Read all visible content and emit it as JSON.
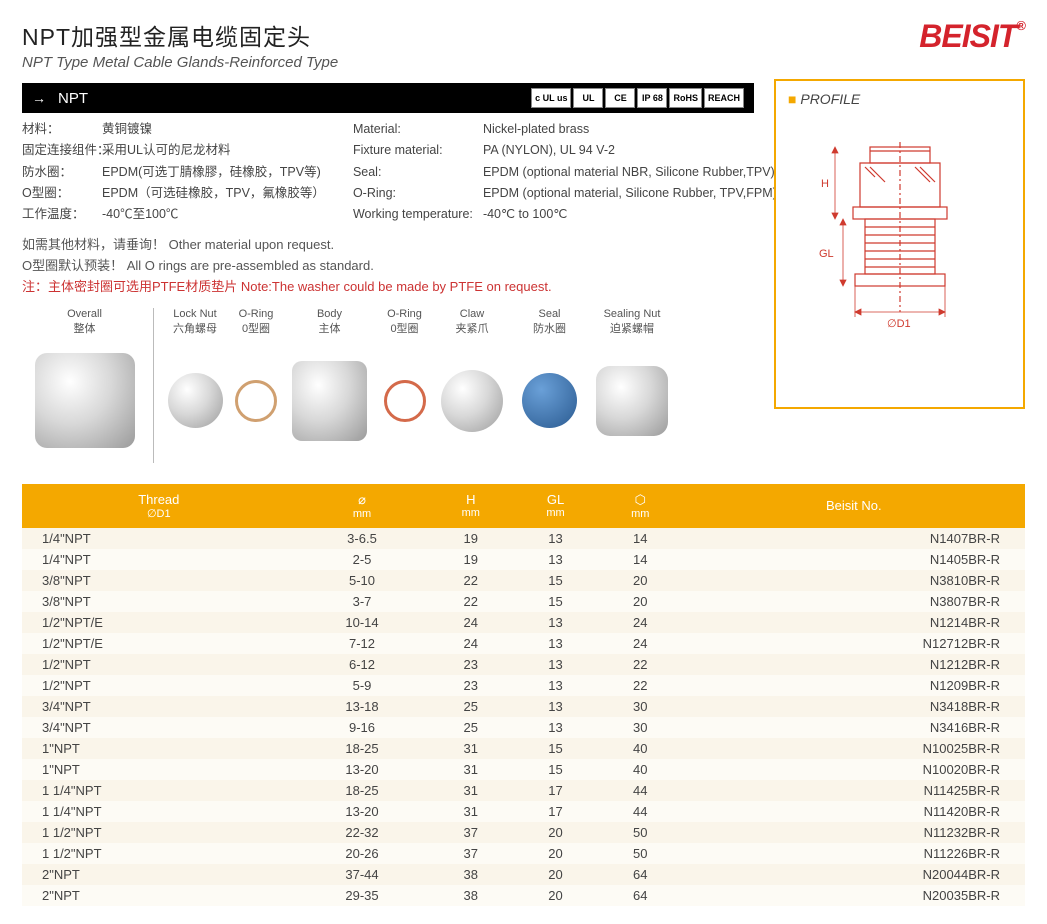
{
  "header": {
    "title_cn": "NPT加强型金属电缆固定头",
    "title_en": "NPT Type Metal Cable Glands-Reinforced Type",
    "logo": "BEISIT",
    "logo_reg": "®",
    "logo_color": "#d4232c"
  },
  "black_bar": {
    "code": "NPT",
    "certs": [
      "c UL us",
      "UL",
      "CE",
      "IP 68",
      "RoHS",
      "REACH"
    ]
  },
  "specs_cn": [
    {
      "label": "材料：",
      "value": "黄铜镀镍"
    },
    {
      "label": "固定连接组件：",
      "value": "采用UL认可的尼龙材料"
    },
    {
      "label": "防水圈：",
      "value": "EPDM(可选丁腈橡膠，硅橡胶，TPV等)"
    },
    {
      "label": "O型圈：",
      "value": "EPDM（可选硅橡胶，TPV，氟橡胶等）"
    },
    {
      "label": "工作温度：",
      "value": "-40℃至100℃"
    }
  ],
  "specs_en": [
    {
      "label": "Material:",
      "value": "Nickel-plated brass"
    },
    {
      "label": "Fixture material:",
      "value": "PA (NYLON), UL 94 V-2"
    },
    {
      "label": "Seal:",
      "value": "EPDM (optional material NBR, Silicone Rubber,TPV)"
    },
    {
      "label": "O-Ring:",
      "value": "EPDM (optional material, Silicone Rubber, TPV,FPM)"
    },
    {
      "label": "Working temperature:",
      "value": "-40℃ to 100℃"
    }
  ],
  "notes": [
    "如需其他材料，请垂询！ Other material upon request.",
    "O型圈默认预装！ All O rings are pre-assembled as standard.",
    "注：主体密封圈可选用PTFE材质垫片 Note:The washer could be made by PTFE on request."
  ],
  "profile": {
    "title": "PROFILE",
    "labels": {
      "H": "H",
      "GL": "GL",
      "D1": "∅D1"
    },
    "line_color": "#cf3a2e"
  },
  "parts": [
    {
      "en": "Overall",
      "cn": "整体",
      "w": 125
    },
    {
      "en": "Lock Nut",
      "cn": "六角螺母",
      "w": 70
    },
    {
      "en": "O-Ring",
      "cn": "0型圈",
      "w": 52
    },
    {
      "en": "Body",
      "cn": "主体",
      "w": 95
    },
    {
      "en": "O-Ring",
      "cn": "0型圈",
      "w": 55
    },
    {
      "en": "Claw",
      "cn": "夹紧爪",
      "w": 80
    },
    {
      "en": "Seal",
      "cn": "防水圈",
      "w": 75
    },
    {
      "en": "Sealing Nut",
      "cn": "迫紧螺帽",
      "w": 90
    }
  ],
  "table": {
    "header_bg": "#f4a800",
    "row_odd_bg": "#faf5ea",
    "row_even_bg": "#fdfbf5",
    "columns": [
      {
        "label": "Thread",
        "sub": "∅D1"
      },
      {
        "label": "⌀",
        "sub": "mm"
      },
      {
        "label": "H",
        "sub": "mm"
      },
      {
        "label": "GL",
        "sub": "mm"
      },
      {
        "label": "⬡",
        "sub": "mm"
      },
      {
        "label": "Beisit No.",
        "sub": ""
      }
    ],
    "rows": [
      [
        "1/4\"NPT",
        "3-6.5",
        "19",
        "13",
        "14",
        "N1407BR-R"
      ],
      [
        "1/4\"NPT",
        "2-5",
        "19",
        "13",
        "14",
        "N1405BR-R"
      ],
      [
        "3/8\"NPT",
        "5-10",
        "22",
        "15",
        "20",
        "N3810BR-R"
      ],
      [
        "3/8\"NPT",
        "3-7",
        "22",
        "15",
        "20",
        "N3807BR-R"
      ],
      [
        "1/2\"NPT/E",
        "10-14",
        "24",
        "13",
        "24",
        "N1214BR-R"
      ],
      [
        "1/2\"NPT/E",
        "7-12",
        "24",
        "13",
        "24",
        "N12712BR-R"
      ],
      [
        "1/2\"NPT",
        "6-12",
        "23",
        "13",
        "22",
        "N1212BR-R"
      ],
      [
        "1/2\"NPT",
        "5-9",
        "23",
        "13",
        "22",
        "N1209BR-R"
      ],
      [
        "3/4\"NPT",
        "13-18",
        "25",
        "13",
        "30",
        "N3418BR-R"
      ],
      [
        "3/4\"NPT",
        "9-16",
        "25",
        "13",
        "30",
        "N3416BR-R"
      ],
      [
        "1\"NPT",
        "18-25",
        "31",
        "15",
        "40",
        "N10025BR-R"
      ],
      [
        "1\"NPT",
        "13-20",
        "31",
        "15",
        "40",
        "N10020BR-R"
      ],
      [
        "1 1/4\"NPT",
        "18-25",
        "31",
        "17",
        "44",
        "N11425BR-R"
      ],
      [
        "1 1/4\"NPT",
        "13-20",
        "31",
        "17",
        "44",
        "N11420BR-R"
      ],
      [
        "1 1/2\"NPT",
        "22-32",
        "37",
        "20",
        "50",
        "N11232BR-R"
      ],
      [
        "1 1/2\"NPT",
        "20-26",
        "37",
        "20",
        "50",
        "N11226BR-R"
      ],
      [
        "2\"NPT",
        "37-44",
        "38",
        "20",
        "64",
        "N20044BR-R"
      ],
      [
        "2\"NPT",
        "29-35",
        "38",
        "20",
        "64",
        "N20035BR-R"
      ]
    ]
  }
}
